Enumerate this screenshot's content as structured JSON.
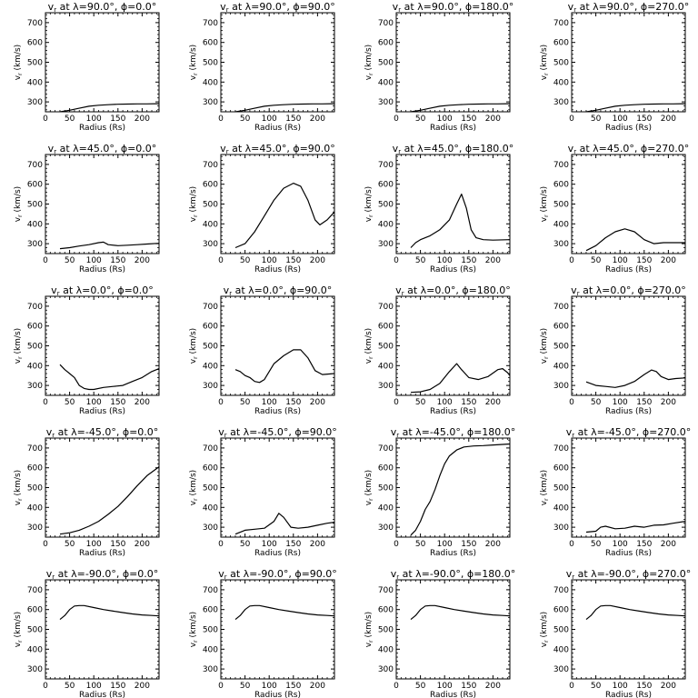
{
  "figure": {
    "xlabel": "Radius (Rs)",
    "ylabel": "v (km/s)",
    "ylabel_sub": "r",
    "xticks": [
      "0",
      "50",
      "100",
      "150",
      "200"
    ],
    "yticks": [
      "300",
      "400",
      "500",
      "600",
      "700"
    ],
    "xlim": [
      0,
      235
    ],
    "ylim": [
      250,
      750
    ]
  },
  "chart_data": [
    {
      "type": "line",
      "title": "v_r at λ=90.0°, ϕ=0.0°",
      "lambda": "90.0",
      "phi": "0.0",
      "x": [
        30,
        50,
        70,
        90,
        110,
        130,
        150,
        170,
        190,
        210,
        230,
        235
      ],
      "y": [
        250,
        258,
        268,
        278,
        283,
        286,
        288,
        289,
        290,
        290,
        291,
        291
      ]
    },
    {
      "type": "line",
      "title": "v_r at λ=90.0°, ϕ=90.0°",
      "lambda": "90.0",
      "phi": "90.0",
      "x": [
        30,
        50,
        70,
        90,
        110,
        130,
        150,
        170,
        190,
        210,
        230,
        235
      ],
      "y": [
        250,
        258,
        268,
        278,
        283,
        286,
        288,
        289,
        290,
        290,
        291,
        291
      ]
    },
    {
      "type": "line",
      "title": "v_r at λ=90.0°, ϕ=180.0°",
      "lambda": "90.0",
      "phi": "180.0",
      "x": [
        30,
        50,
        70,
        90,
        110,
        130,
        150,
        170,
        190,
        210,
        230,
        235
      ],
      "y": [
        250,
        258,
        268,
        278,
        283,
        286,
        288,
        289,
        290,
        290,
        291,
        291
      ]
    },
    {
      "type": "line",
      "title": "v_r at λ=90.0°, ϕ=270.0°",
      "lambda": "90.0",
      "phi": "270.0",
      "x": [
        30,
        50,
        70,
        90,
        110,
        130,
        150,
        170,
        190,
        210,
        230,
        235
      ],
      "y": [
        250,
        258,
        268,
        278,
        283,
        286,
        288,
        289,
        290,
        290,
        291,
        291
      ]
    },
    {
      "type": "line",
      "title": "v_r at λ=45.0°, ϕ=0.0°",
      "lambda": "45.0",
      "phi": "0.0",
      "x": [
        30,
        50,
        70,
        90,
        110,
        120,
        130,
        150,
        170,
        190,
        210,
        235
      ],
      "y": [
        275,
        280,
        288,
        295,
        305,
        308,
        295,
        290,
        292,
        295,
        298,
        302
      ]
    },
    {
      "type": "line",
      "title": "v_r at λ=45.0°, ϕ=90.0°",
      "lambda": "45.0",
      "phi": "90.0",
      "x": [
        30,
        50,
        70,
        90,
        110,
        130,
        150,
        165,
        180,
        195,
        205,
        220,
        235
      ],
      "y": [
        280,
        300,
        360,
        440,
        520,
        580,
        605,
        590,
        520,
        420,
        395,
        420,
        460
      ]
    },
    {
      "type": "line",
      "title": "v_r at λ=45.0°, ϕ=180.0°",
      "lambda": "45.0",
      "phi": "180.0",
      "x": [
        30,
        40,
        50,
        70,
        90,
        110,
        125,
        135,
        145,
        155,
        165,
        180,
        200,
        235
      ],
      "y": [
        280,
        305,
        320,
        340,
        370,
        420,
        500,
        550,
        480,
        370,
        330,
        320,
        318,
        320
      ]
    },
    {
      "type": "line",
      "title": "v_r at λ=45.0°, ϕ=270.0°",
      "lambda": "45.0",
      "phi": "270.0",
      "x": [
        30,
        50,
        70,
        90,
        110,
        130,
        150,
        170,
        190,
        210,
        235
      ],
      "y": [
        265,
        290,
        330,
        360,
        375,
        360,
        320,
        300,
        305,
        305,
        305
      ]
    },
    {
      "type": "line",
      "title": "v_r at λ=0.0°, ϕ=0.0°",
      "lambda": "0.0",
      "phi": "0.0",
      "x": [
        30,
        40,
        50,
        60,
        70,
        80,
        90,
        100,
        120,
        140,
        160,
        180,
        200,
        220,
        235
      ],
      "y": [
        405,
        380,
        360,
        340,
        300,
        285,
        280,
        280,
        290,
        295,
        300,
        320,
        340,
        370,
        385
      ]
    },
    {
      "type": "line",
      "title": "v_r at λ=0.0°, ϕ=90.0°",
      "lambda": "0.0",
      "phi": "90.0",
      "x": [
        30,
        40,
        50,
        60,
        70,
        80,
        90,
        110,
        130,
        150,
        165,
        180,
        195,
        210,
        235
      ],
      "y": [
        380,
        370,
        350,
        340,
        320,
        315,
        330,
        410,
        450,
        480,
        480,
        440,
        375,
        355,
        360
      ]
    },
    {
      "type": "line",
      "title": "v_r at λ=0.0°, ϕ=180.0°",
      "lambda": "0.0",
      "phi": "180.0",
      "x": [
        30,
        50,
        70,
        90,
        110,
        125,
        135,
        150,
        170,
        190,
        210,
        220,
        230,
        235
      ],
      "y": [
        265,
        268,
        280,
        310,
        370,
        410,
        380,
        340,
        330,
        345,
        380,
        385,
        365,
        350
      ]
    },
    {
      "type": "line",
      "title": "v_r at λ=0.0°, ϕ=270.0°",
      "lambda": "0.0",
      "phi": "270.0",
      "x": [
        30,
        50,
        70,
        90,
        110,
        130,
        150,
        165,
        175,
        185,
        200,
        215,
        235
      ],
      "y": [
        318,
        300,
        295,
        290,
        300,
        320,
        355,
        378,
        370,
        345,
        330,
        335,
        338
      ]
    },
    {
      "type": "line",
      "title": "v_r at λ=-45.0°, ϕ=0.0°",
      "lambda": "-45.0",
      "phi": "0.0",
      "x": [
        30,
        50,
        70,
        90,
        110,
        130,
        150,
        170,
        190,
        210,
        235
      ],
      "y": [
        265,
        272,
        285,
        305,
        330,
        365,
        405,
        455,
        510,
        560,
        605
      ]
    },
    {
      "type": "line",
      "title": "v_r at λ=-45.0°, ϕ=90.0°",
      "lambda": "-45.0",
      "phi": "90.0",
      "x": [
        30,
        50,
        70,
        90,
        110,
        120,
        130,
        145,
        160,
        180,
        200,
        220,
        235
      ],
      "y": [
        265,
        285,
        290,
        295,
        330,
        370,
        350,
        300,
        295,
        300,
        310,
        320,
        325
      ]
    },
    {
      "type": "line",
      "title": "v_r at λ=-45.0°, ϕ=180.0°",
      "lambda": "-45.0",
      "phi": "180.0",
      "x": [
        30,
        40,
        50,
        60,
        70,
        80,
        90,
        100,
        110,
        125,
        140,
        160,
        180,
        200,
        220,
        235
      ],
      "y": [
        260,
        285,
        330,
        390,
        430,
        490,
        560,
        620,
        660,
        690,
        705,
        710,
        712,
        715,
        718,
        720
      ]
    },
    {
      "type": "line",
      "title": "v_r at λ=-45.0°, ϕ=270.0°",
      "lambda": "-45.0",
      "phi": "270.0",
      "x": [
        30,
        50,
        60,
        70,
        90,
        110,
        130,
        150,
        170,
        190,
        210,
        235
      ],
      "y": [
        275,
        280,
        300,
        305,
        292,
        295,
        305,
        300,
        310,
        312,
        320,
        330
      ]
    },
    {
      "type": "line",
      "title": "v_r at λ=-90.0°, ϕ=0.0°",
      "lambda": "-90.0",
      "phi": "0.0",
      "x": [
        30,
        40,
        50,
        60,
        70,
        80,
        100,
        120,
        140,
        160,
        180,
        200,
        220,
        235
      ],
      "y": [
        550,
        570,
        600,
        618,
        620,
        620,
        610,
        600,
        592,
        585,
        578,
        573,
        570,
        568
      ]
    },
    {
      "type": "line",
      "title": "v_r at λ=-90.0°, ϕ=90.0°",
      "lambda": "-90.0",
      "phi": "90.0",
      "x": [
        30,
        40,
        50,
        60,
        70,
        80,
        100,
        120,
        140,
        160,
        180,
        200,
        220,
        235
      ],
      "y": [
        550,
        570,
        600,
        618,
        620,
        620,
        610,
        600,
        592,
        585,
        578,
        573,
        570,
        568
      ]
    },
    {
      "type": "line",
      "title": "v_r at λ=-90.0°, ϕ=180.0°",
      "lambda": "-90.0",
      "phi": "180.0",
      "x": [
        30,
        40,
        50,
        60,
        70,
        80,
        100,
        120,
        140,
        160,
        180,
        200,
        220,
        235
      ],
      "y": [
        550,
        570,
        600,
        618,
        620,
        620,
        610,
        600,
        592,
        585,
        578,
        573,
        570,
        568
      ]
    },
    {
      "type": "line",
      "title": "v_r at λ=-90.0°, ϕ=270.0°",
      "lambda": "-90.0",
      "phi": "270.0",
      "x": [
        30,
        40,
        50,
        60,
        70,
        80,
        100,
        120,
        140,
        160,
        180,
        200,
        220,
        235
      ],
      "y": [
        550,
        570,
        600,
        618,
        620,
        620,
        610,
        600,
        592,
        585,
        578,
        573,
        570,
        568
      ]
    }
  ]
}
